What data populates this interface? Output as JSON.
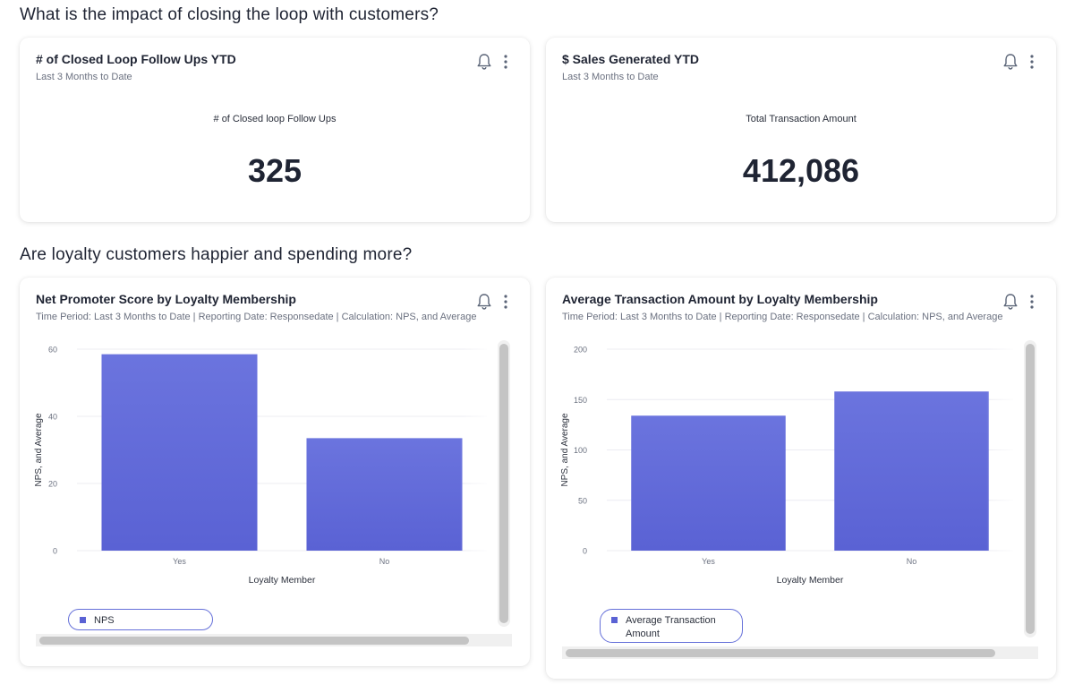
{
  "sections": {
    "closing_loop_title": "What is the impact of closing the loop with customers?",
    "loyalty_title": "Are loyalty customers happier and spending more?"
  },
  "card_followups": {
    "title": "# of Closed Loop Follow Ups YTD",
    "subtitle": "Last 3 Months to Date",
    "metric_label": "# of Closed loop Follow Ups",
    "metric_value": "325"
  },
  "card_sales": {
    "title": "$ Sales Generated YTD",
    "subtitle": "Last 3 Months to Date",
    "metric_label": "Total Transaction Amount",
    "metric_value": "412,086"
  },
  "card_nps": {
    "title": "Net Promoter Score by Loyalty Membership",
    "subtitle": "Time Period: Last 3 Months to Date | Reporting Date: Responsedate | Calculation: NPS, and Average",
    "legend": "NPS"
  },
  "card_avg": {
    "title": "Average Transaction Amount by Loyalty Membership",
    "subtitle": "Time Period: Last 3 Months to Date | Reporting Date: Responsedate | Calculation: NPS, and Average",
    "legend_line1": "Average Transaction",
    "legend_line2": "Amount"
  },
  "colors": {
    "bar": "#5a62d4",
    "bar_top": "#6b74de",
    "grid": "#ececf2",
    "axis_text": "#6b7180"
  },
  "chart_data": [
    {
      "type": "bar",
      "id": "nps",
      "title": "Net Promoter Score by Loyalty Membership",
      "categories": [
        "Yes",
        "No"
      ],
      "series": [
        {
          "name": "NPS",
          "values": [
            58.5,
            33.5
          ]
        }
      ],
      "xlabel": "Loyalty Member",
      "ylabel": "NPS, and Average",
      "ylim": [
        0,
        60
      ],
      "yticks": [
        0,
        20,
        40,
        60
      ],
      "grid": true,
      "legend": "bottom-left"
    },
    {
      "type": "bar",
      "id": "avg",
      "title": "Average Transaction Amount by Loyalty Membership",
      "categories": [
        "Yes",
        "No"
      ],
      "series": [
        {
          "name": "Average Transaction Amount",
          "values": [
            134,
            158
          ]
        }
      ],
      "xlabel": "Loyalty Member",
      "ylabel": "NPS, and Average",
      "ylim": [
        0,
        200
      ],
      "yticks": [
        0,
        50,
        100,
        150,
        200
      ],
      "grid": true,
      "legend": "bottom-left"
    }
  ]
}
